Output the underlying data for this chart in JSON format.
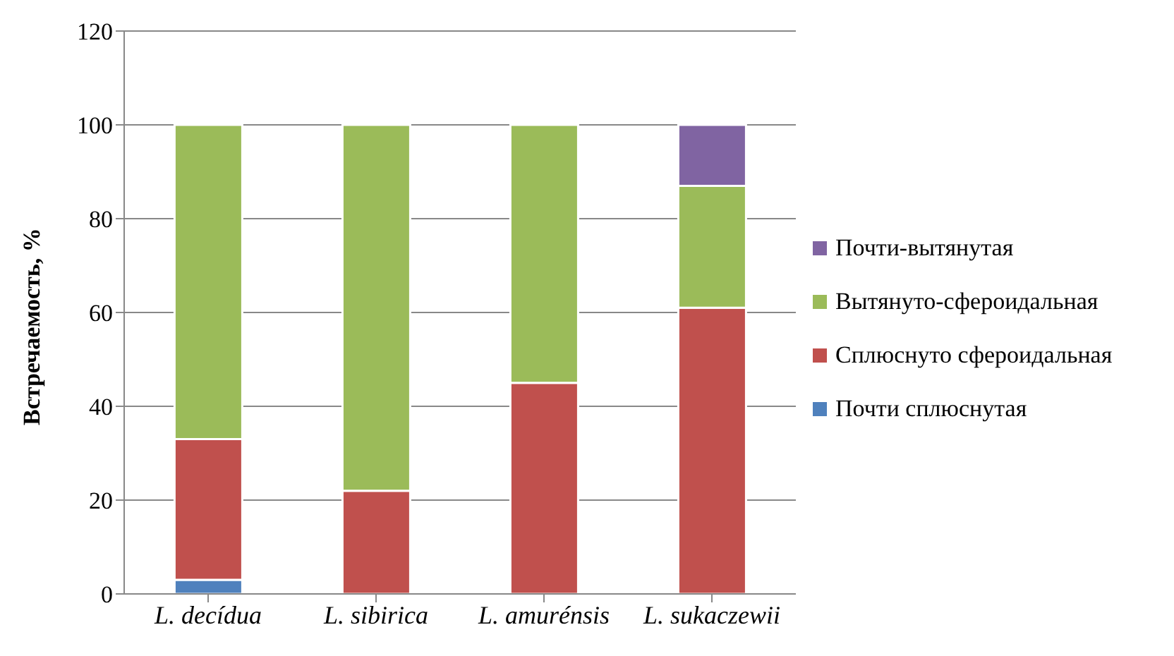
{
  "chart_data": {
    "type": "bar",
    "stacked": true,
    "ylabel": "Встречаемость, %",
    "categories": [
      "L. decídua",
      "L. sibirica",
      "L. amurénsis",
      "L. sukaczewii"
    ],
    "series": [
      {
        "name": "Почти сплюснутая",
        "color": "#4f81bd",
        "values": [
          3,
          0,
          0,
          0
        ]
      },
      {
        "name": "Сплюснуто сфероидальная",
        "color": "#c0504d",
        "values": [
          30,
          22,
          45,
          61
        ]
      },
      {
        "name": "Вытянуто-сфероидальная",
        "color": "#9bbb59",
        "values": [
          67,
          78,
          55,
          26
        ]
      },
      {
        "name": "Почти-вытянутая",
        "color": "#8064a2",
        "values": [
          0,
          0,
          0,
          13
        ]
      }
    ],
    "ylim": [
      0,
      120
    ],
    "yticks": [
      0,
      20,
      40,
      60,
      80,
      100,
      120
    ],
    "grid": "y",
    "legend": "right"
  }
}
